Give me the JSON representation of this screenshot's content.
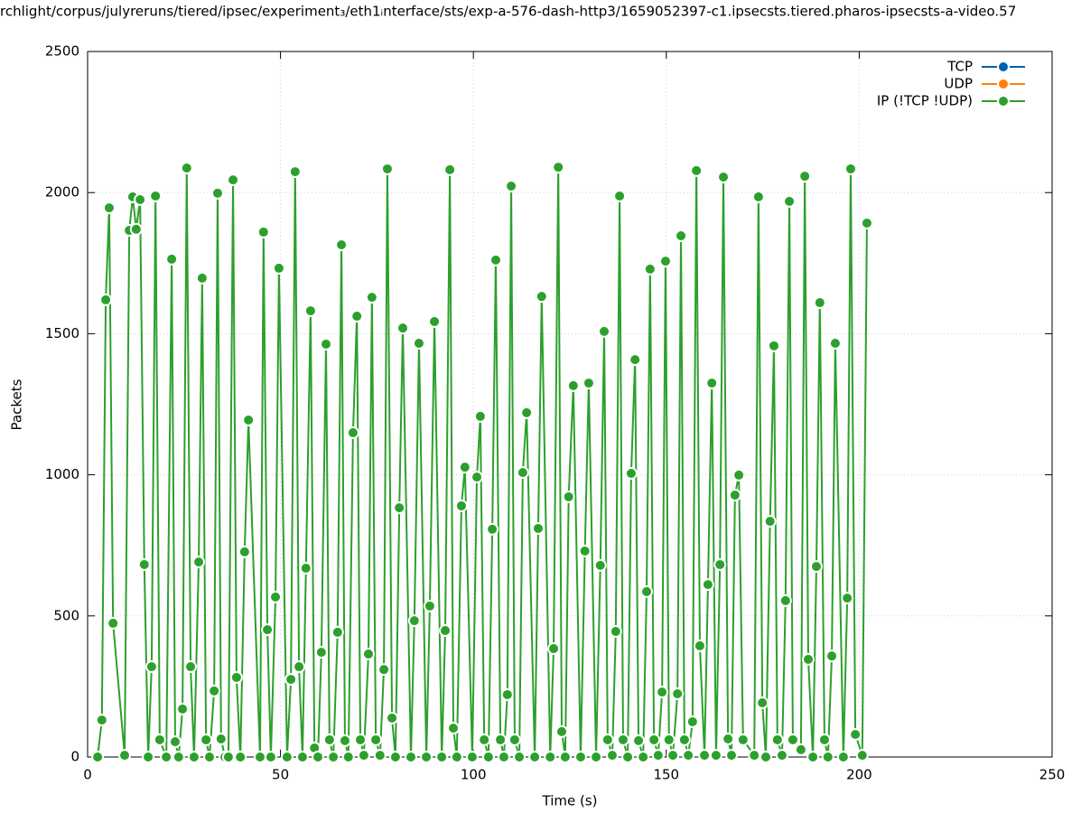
{
  "chart_data": {
    "type": "line",
    "title": "rchlight/corpus/julyreruns/tiered/ipsec/experiment₃/eth1ᵢnterface/sts/exp-a-576-dash-http3/1659052397-c1.ipsecsts.tiered.pharos-ipsecsts-a-video.57",
    "xlabel": "Time (s)",
    "ylabel": "Packets",
    "xlim": [
      0,
      250
    ],
    "xticks": [
      0,
      50,
      100,
      150,
      200,
      250
    ],
    "ylim": [
      0,
      2500
    ],
    "yticks": [
      0,
      500,
      1000,
      1500,
      2000,
      2500
    ],
    "grid": true,
    "legend": "top-right",
    "series": [
      {
        "name": "TCP",
        "color": "#0060ad",
        "x": [],
        "values": []
      },
      {
        "name": "UDP",
        "color": "#ff7f0e",
        "x": [],
        "values": []
      },
      {
        "name": "IP (!TCP  !UDP)",
        "color": "#2ca02c",
        "x": [
          2.6,
          3.7,
          4.7,
          5.6,
          6.6,
          9.6,
          10.8,
          11.7,
          12.6,
          13.6,
          14.7,
          15.7,
          16.6,
          17.6,
          18.7,
          20.4,
          21.8,
          22.7,
          23.6,
          24.6,
          25.7,
          26.7,
          27.6,
          28.8,
          29.7,
          30.7,
          31.6,
          32.8,
          33.7,
          34.6,
          35.6,
          36.5,
          37.7,
          38.6,
          39.6,
          40.7,
          41.7,
          44.7,
          45.6,
          46.6,
          47.5,
          48.7,
          49.6,
          51.7,
          52.7,
          53.8,
          54.8,
          55.7,
          56.6,
          57.8,
          58.8,
          59.7,
          60.6,
          61.8,
          62.7,
          63.7,
          64.8,
          65.8,
          66.7,
          67.6,
          68.8,
          69.8,
          70.7,
          71.6,
          72.8,
          73.7,
          74.7,
          75.8,
          76.8,
          77.7,
          78.9,
          79.8,
          80.8,
          81.7,
          83.8,
          84.7,
          85.9,
          87.8,
          88.7,
          89.9,
          91.8,
          92.7,
          93.9,
          94.8,
          95.7,
          96.9,
          97.8,
          99.7,
          100.9,
          101.8,
          102.8,
          103.9,
          104.9,
          105.8,
          107.0,
          107.9,
          108.8,
          109.8,
          110.7,
          111.9,
          112.8,
          113.8,
          115.9,
          116.8,
          117.7,
          119.9,
          120.8,
          122.0,
          122.9,
          123.8,
          124.7,
          125.9,
          127.8,
          128.9,
          129.9,
          131.8,
          132.9,
          133.9,
          134.8,
          136.0,
          136.9,
          137.9,
          138.8,
          140.0,
          140.9,
          141.9,
          142.8,
          144.0,
          144.9,
          145.8,
          146.8,
          147.9,
          148.9,
          149.8,
          150.7,
          151.7,
          152.9,
          153.8,
          154.7,
          155.7,
          156.8,
          157.8,
          158.7,
          159.9,
          160.8,
          161.8,
          162.9,
          163.9,
          164.8,
          166.0,
          166.9,
          167.8,
          168.8,
          169.9,
          172.8,
          173.9,
          174.9,
          175.8,
          176.9,
          177.9,
          178.8,
          180.0,
          180.9,
          181.9,
          182.8,
          184.9,
          185.9,
          186.8,
          188.0,
          188.9,
          189.8,
          191.0,
          191.9,
          192.9,
          193.8,
          195.9,
          196.9,
          197.8,
          199.0,
          200.8,
          202.0
        ],
        "values": [
          0,
          131,
          1620,
          1946,
          474,
          6,
          1866,
          1985,
          1870,
          1975,
          682,
          0,
          320,
          1988,
          61,
          0,
          1764,
          54,
          0,
          170,
          2087,
          320,
          0,
          691,
          1697,
          61,
          0,
          234,
          1998,
          64,
          0,
          0,
          2045,
          282,
          0,
          727,
          1194,
          0,
          1860,
          451,
          0,
          567,
          1732,
          0,
          275,
          2074,
          320,
          0,
          669,
          1581,
          32,
          0,
          371,
          1463,
          61,
          0,
          442,
          1815,
          58,
          0,
          1149,
          1562,
          61,
          6,
          365,
          1629,
          61,
          6,
          310,
          2084,
          138,
          0,
          883,
          1520,
          0,
          483,
          1466,
          0,
          535,
          1543,
          0,
          448,
          2081,
          102,
          0,
          890,
          1027,
          0,
          992,
          1207,
          61,
          0,
          807,
          1761,
          61,
          0,
          221,
          2023,
          61,
          0,
          1008,
          1220,
          0,
          810,
          1632,
          0,
          384,
          2090,
          90,
          0,
          922,
          1316,
          0,
          730,
          1325,
          0,
          679,
          1508,
          61,
          6,
          445,
          1988,
          61,
          0,
          1005,
          1408,
          58,
          0,
          586,
          1729,
          61,
          6,
          230,
          1757,
          61,
          6,
          224,
          1847,
          61,
          6,
          125,
          2078,
          394,
          6,
          611,
          1325,
          6,
          682,
          2055,
          64,
          6,
          928,
          999,
          61,
          6,
          1985,
          192,
          0,
          835,
          1457,
          61,
          6,
          554,
          1969,
          61,
          26,
          2058,
          346,
          0,
          675,
          1610,
          61,
          0,
          358,
          1466,
          0,
          563,
          2084,
          80,
          6,
          1892
        ]
      }
    ]
  }
}
